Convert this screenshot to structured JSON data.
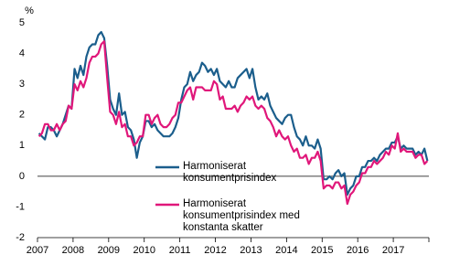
{
  "chart_data": {
    "type": "line",
    "y_label": "%",
    "categories": [
      "2007",
      null,
      null,
      null,
      null,
      null,
      null,
      null,
      null,
      null,
      null,
      null,
      "2008",
      null,
      null,
      null,
      null,
      null,
      null,
      null,
      null,
      null,
      null,
      null,
      "2009",
      null,
      null,
      null,
      null,
      null,
      null,
      null,
      null,
      null,
      null,
      null,
      "2010",
      null,
      null,
      null,
      null,
      null,
      null,
      null,
      null,
      null,
      null,
      null,
      "2011",
      null,
      null,
      null,
      null,
      null,
      null,
      null,
      null,
      null,
      null,
      null,
      "2012",
      null,
      null,
      null,
      null,
      null,
      null,
      null,
      null,
      null,
      null,
      null,
      "2013",
      null,
      null,
      null,
      null,
      null,
      null,
      null,
      null,
      null,
      null,
      null,
      "2014",
      null,
      null,
      null,
      null,
      null,
      null,
      null,
      null,
      null,
      null,
      null,
      "2015",
      null,
      null,
      null,
      null,
      null,
      null,
      null,
      null,
      null,
      null,
      null,
      "2016",
      null,
      null,
      null,
      null,
      null,
      null,
      null,
      null,
      null,
      null,
      null,
      "2017",
      null,
      null,
      null,
      null,
      null,
      null,
      null,
      null,
      null,
      null,
      null
    ],
    "series": [
      {
        "name": "Harmoniserat\nkonsumentprisindex",
        "color": "#1b5e8c",
        "values": [
          1.4,
          1.3,
          1.2,
          1.6,
          1.6,
          1.5,
          1.3,
          1.5,
          1.7,
          2.0,
          2.3,
          2.2,
          3.5,
          3.2,
          3.6,
          3.3,
          3.9,
          4.2,
          4.3,
          4.3,
          4.6,
          4.7,
          4.5,
          3.6,
          2.5,
          2.2,
          2.0,
          2.7,
          2.0,
          2.1,
          1.6,
          1.5,
          1.2,
          0.6,
          1.1,
          1.3,
          1.8,
          1.8,
          1.6,
          1.7,
          1.5,
          1.4,
          1.3,
          1.3,
          1.3,
          1.4,
          1.6,
          1.9,
          2.5,
          2.9,
          3.0,
          3.4,
          3.1,
          3.3,
          3.4,
          3.7,
          3.6,
          3.4,
          3.5,
          3.3,
          3.5,
          3.1,
          3.0,
          2.9,
          3.1,
          2.9,
          2.9,
          3.2,
          3.3,
          3.4,
          3.5,
          3.2,
          3.5,
          2.9,
          2.5,
          2.6,
          2.5,
          2.7,
          2.3,
          2.1,
          1.9,
          1.8,
          1.7,
          1.9,
          2.0,
          2.0,
          1.6,
          1.3,
          1.2,
          1.0,
          1.3,
          1.0,
          1.0,
          0.9,
          1.2,
          0.9,
          -0.1,
          -0.1,
          0.0,
          -0.1,
          0.1,
          0.2,
          0.0,
          0.1,
          -0.6,
          -0.4,
          -0.3,
          0.0,
          0.0,
          0.3,
          0.3,
          0.5,
          0.5,
          0.6,
          0.5,
          0.7,
          0.8,
          0.9,
          0.9,
          1.1,
          1.1,
          1.3,
          0.9,
          1.0,
          0.9,
          0.9,
          0.9,
          0.7,
          0.8,
          0.7,
          0.9,
          0.5
        ]
      },
      {
        "name": "Harmoniserat\nkonsumentprisindex med\nkonstanta skatter",
        "color": "#e0177a",
        "values": [
          1.3,
          1.4,
          1.7,
          1.7,
          1.5,
          1.5,
          1.7,
          1.5,
          1.7,
          1.8,
          2.3,
          2.2,
          3.0,
          2.8,
          3.1,
          2.9,
          3.2,
          3.7,
          3.9,
          3.9,
          4.0,
          4.3,
          4.4,
          3.2,
          2.1,
          2.0,
          1.7,
          2.1,
          1.6,
          1.7,
          1.3,
          1.3,
          1.0,
          1.1,
          1.3,
          1.3,
          2.0,
          2.0,
          1.7,
          1.9,
          2.0,
          1.7,
          1.6,
          1.6,
          1.7,
          1.9,
          2.0,
          2.4,
          2.4,
          2.6,
          2.8,
          2.9,
          2.5,
          2.9,
          2.9,
          2.9,
          2.8,
          2.8,
          2.8,
          3.1,
          3.0,
          2.5,
          2.6,
          2.2,
          2.2,
          2.2,
          2.3,
          2.1,
          2.3,
          2.4,
          2.6,
          2.5,
          2.6,
          2.3,
          2.2,
          2.3,
          2.2,
          1.9,
          1.8,
          1.6,
          1.3,
          1.5,
          1.3,
          1.2,
          1.3,
          1.0,
          0.8,
          0.9,
          0.6,
          0.6,
          0.7,
          0.4,
          0.6,
          0.6,
          0.8,
          0.5,
          -0.4,
          -0.3,
          -0.3,
          -0.4,
          -0.2,
          -0.2,
          -0.4,
          -0.3,
          -0.9,
          -0.6,
          -0.5,
          -0.3,
          -0.2,
          0.1,
          0.1,
          0.3,
          0.3,
          0.5,
          0.4,
          0.5,
          0.6,
          0.8,
          0.7,
          1.0,
          0.9,
          1.4,
          0.8,
          0.9,
          0.8,
          0.8,
          0.8,
          0.6,
          0.7,
          0.7,
          0.4,
          0.5
        ]
      }
    ],
    "ylim": [
      -2,
      5
    ],
    "yticks": [
      -2,
      -1,
      0,
      1,
      2,
      3,
      4,
      5
    ],
    "grid": false
  }
}
